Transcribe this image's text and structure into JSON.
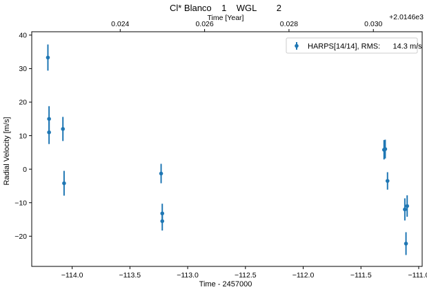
{
  "chart_data": {
    "type": "scatter",
    "title": "Cl* Blanco    1    WGL        2",
    "xlabel": "Time - 2457000",
    "ylabel": "Radial Velocity [m/s]",
    "top_xlabel": "Time [Year]",
    "top_offset_label": "+2.0146e3",
    "xlim": [
      -114.35,
      -110.97
    ],
    "ylim": [
      -29,
      41
    ],
    "xticks": [
      -114.0,
      -113.5,
      -113.0,
      -112.5,
      -112.0,
      -111.5,
      -111.0
    ],
    "xtick_labels": [
      "−114.0",
      "−113.5",
      "−113.0",
      "−112.5",
      "−112.0",
      "−111.5",
      "−111.0"
    ],
    "yticks": [
      -20,
      -10,
      0,
      10,
      20,
      30,
      40
    ],
    "ytick_labels": [
      "−20",
      "−10",
      "0",
      "10",
      "20",
      "30",
      "40"
    ],
    "top_xticks": [
      0.024,
      0.026,
      0.028,
      0.03
    ],
    "top_xtick_labels": [
      "0.024",
      "0.026",
      "0.028",
      "0.030"
    ],
    "top_axis_year_zero": 2014.6,
    "grid": false,
    "legend_position": "top-right",
    "series": [
      {
        "name": "HARPS[14/14], RMS:      14.3 m/s",
        "color": "#1f77b4",
        "x": [
          -114.21,
          -114.2,
          -114.2,
          -114.08,
          -114.07,
          -113.23,
          -113.22,
          -113.22,
          -111.3,
          -111.29,
          -111.27,
          -111.12,
          -111.11,
          -111.1
        ],
        "y": [
          33.3,
          15.0,
          11.0,
          12.0,
          -4.2,
          -1.3,
          -15.5,
          -13.2,
          5.8,
          6.0,
          -3.5,
          -12.0,
          -22.2,
          -11.0
        ],
        "err": [
          3.9,
          3.8,
          3.5,
          3.6,
          3.7,
          2.9,
          2.8,
          2.9,
          2.9,
          2.8,
          2.6,
          3.3,
          3.4,
          3.2
        ]
      }
    ]
  }
}
